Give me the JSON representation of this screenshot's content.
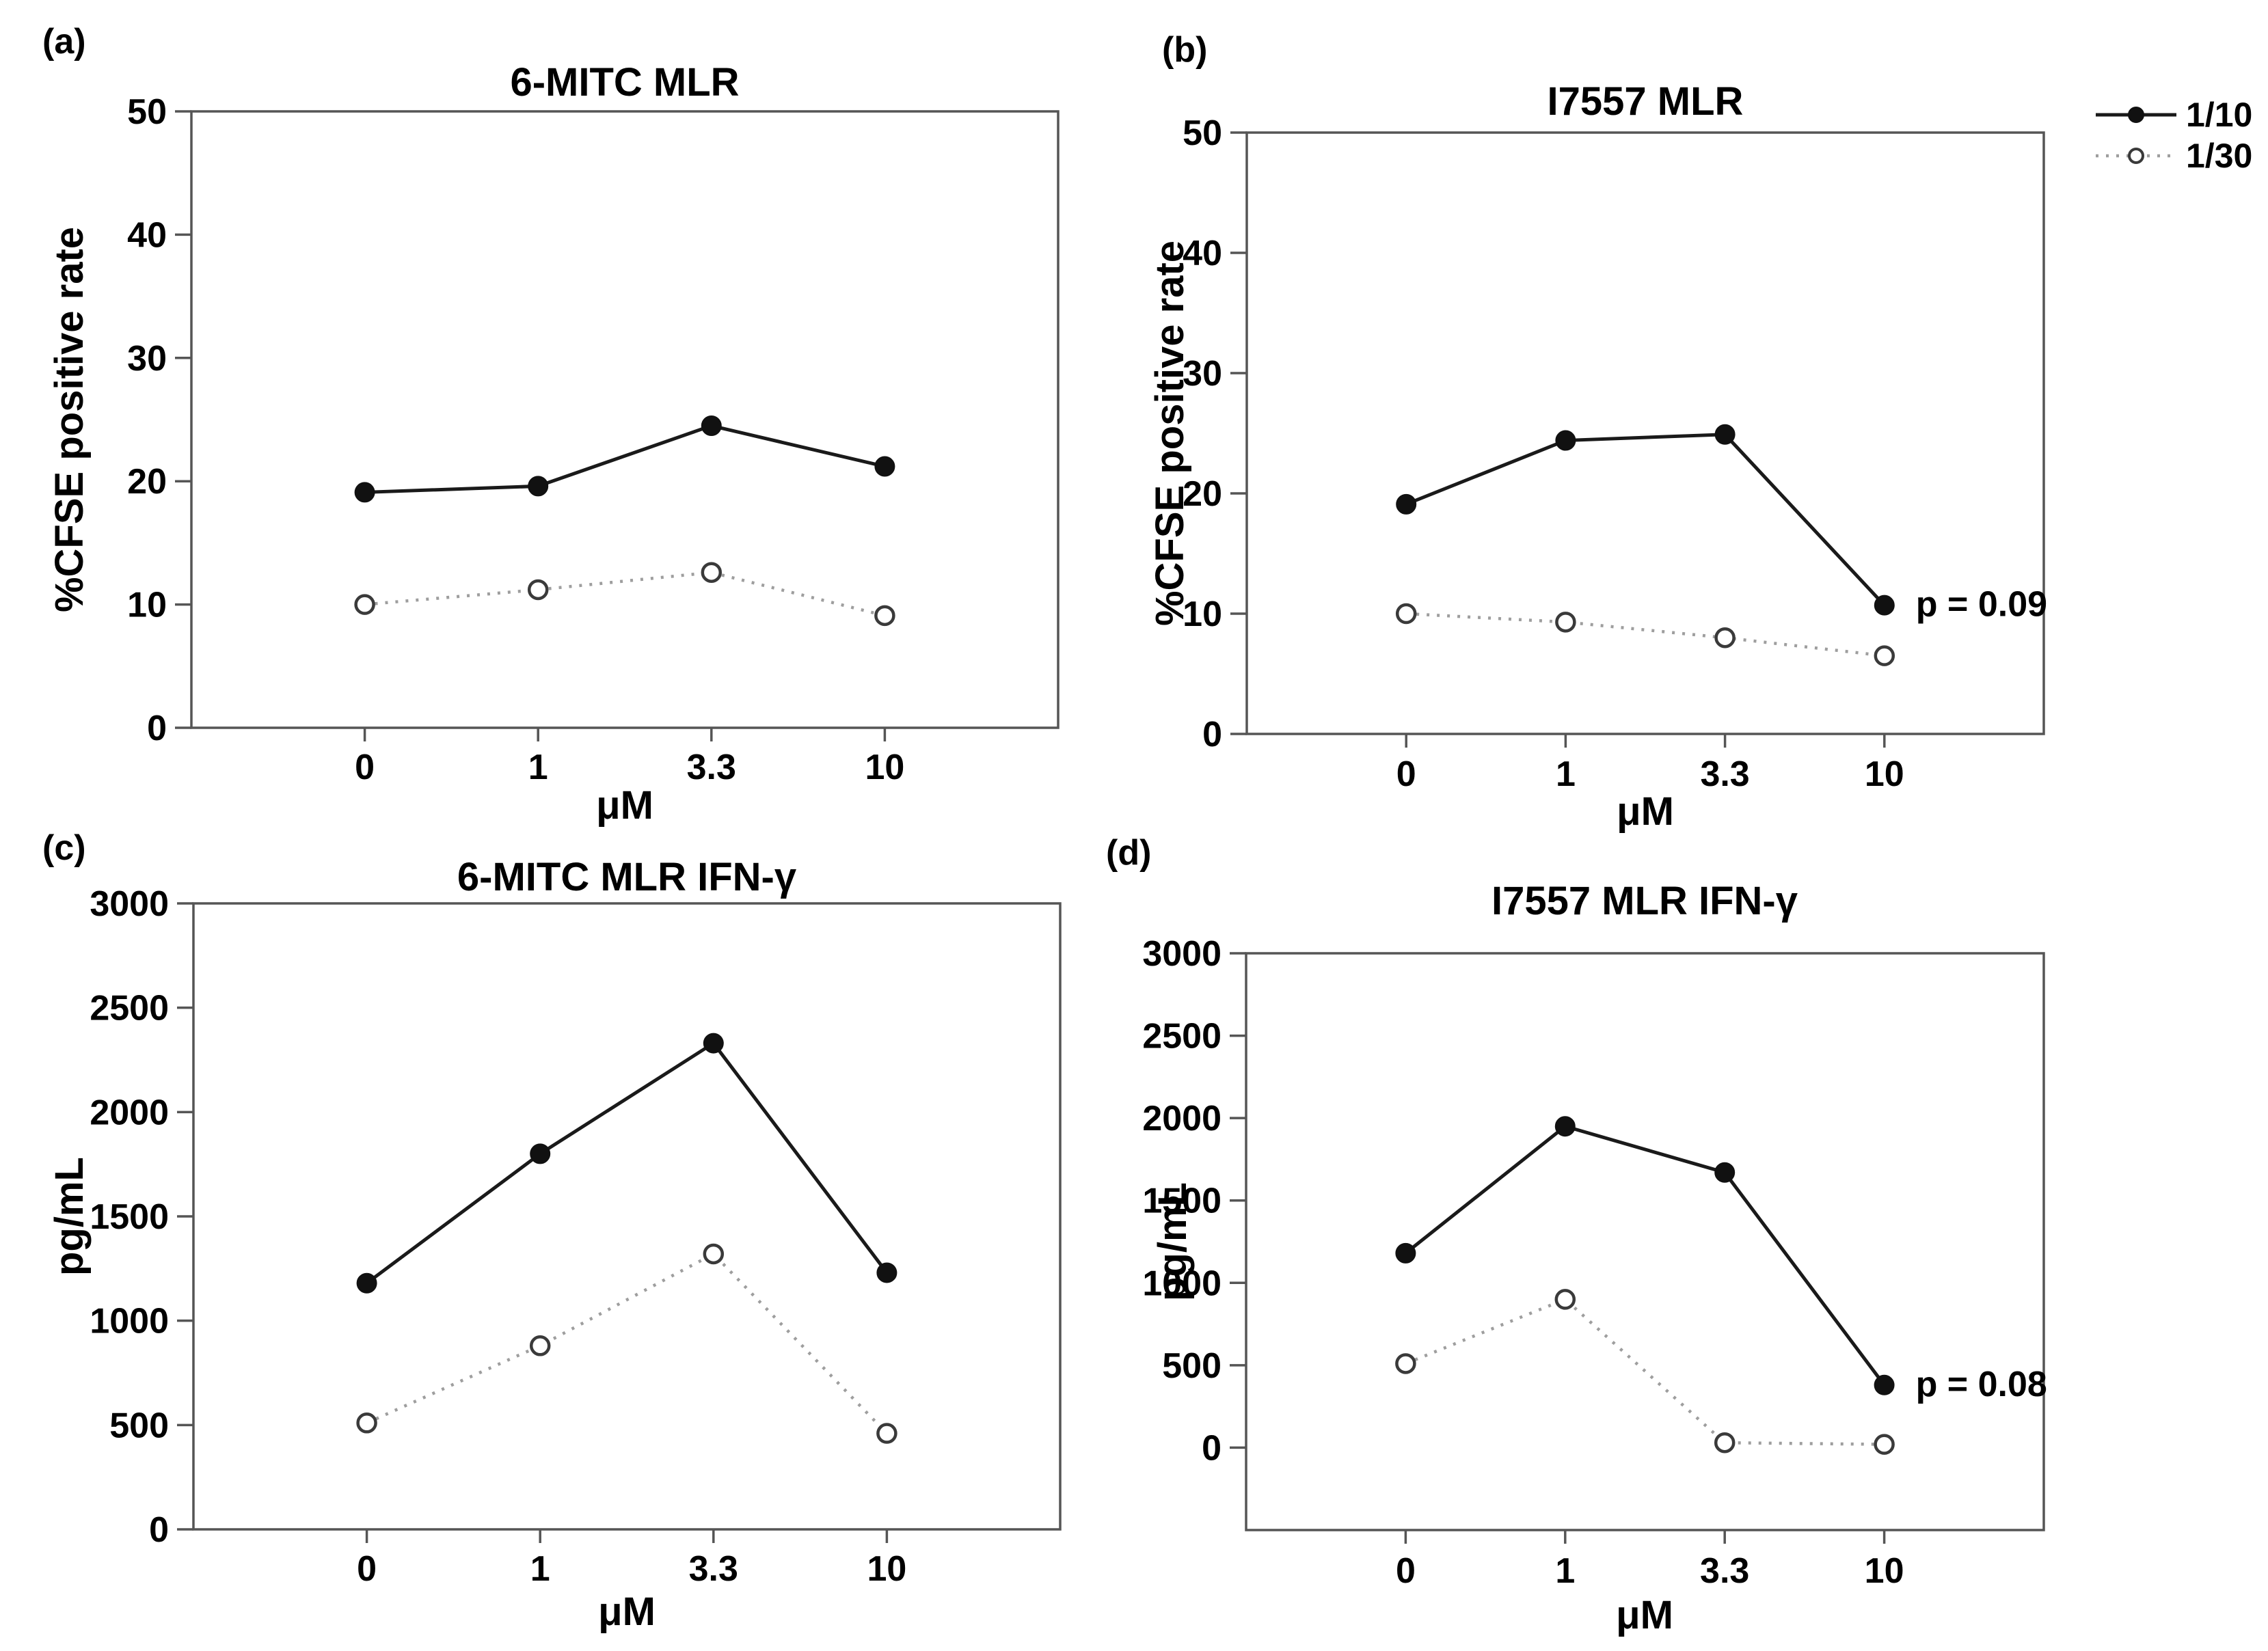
{
  "figure": {
    "legend": {
      "entries": [
        {
          "label": "1/10",
          "marker": "filled-circle",
          "line": "solid"
        },
        {
          "label": "1/30",
          "marker": "open-circle",
          "line": "dotted"
        }
      ]
    },
    "colors": {
      "solid_line": "#1a1a1a",
      "dotted_line": "#9e9e9e",
      "marker_fill": "#111111",
      "marker_open_fill": "#ffffff",
      "marker_open_stroke": "#3a3a3a",
      "axis_box": "#555555",
      "text": "#000000"
    }
  },
  "chart_data": [
    {
      "type": "line",
      "panel_label": "(a)",
      "title": "6-MITC MLR",
      "xlabel": "μM",
      "ylabel": "%CFSE positive rate",
      "categories": [
        "0",
        "1",
        "3.3",
        "10"
      ],
      "yticks": [
        0,
        10,
        20,
        30,
        40,
        50
      ],
      "ylim": [
        0,
        50
      ],
      "grid": false,
      "series": [
        {
          "name": "1/10",
          "values": [
            19.1,
            19.6,
            24.5,
            21.2
          ]
        },
        {
          "name": "1/30",
          "values": [
            10.0,
            11.2,
            12.6,
            9.1
          ]
        }
      ],
      "annotation": null
    },
    {
      "type": "line",
      "panel_label": "(b)",
      "title": "I7557 MLR",
      "xlabel": "μM",
      "ylabel": "%CFSE positive rate",
      "categories": [
        "0",
        "1",
        "3.3",
        "10"
      ],
      "yticks": [
        0,
        10,
        20,
        30,
        40,
        50
      ],
      "ylim": [
        0,
        50
      ],
      "grid": false,
      "series": [
        {
          "name": "1/10",
          "values": [
            19.1,
            24.4,
            24.9,
            10.7
          ]
        },
        {
          "name": "1/30",
          "values": [
            10.0,
            9.3,
            8.0,
            6.5
          ]
        }
      ],
      "annotation": {
        "text": "p = 0.09",
        "series": "1/10",
        "category_index": 3
      }
    },
    {
      "type": "line",
      "panel_label": "(c)",
      "title": "6-MITC MLR IFN-γ",
      "xlabel": "μM",
      "ylabel": "pg/mL",
      "categories": [
        "0",
        "1",
        "3.3",
        "10"
      ],
      "yticks": [
        0,
        500,
        1000,
        1500,
        2000,
        2500,
        3000
      ],
      "ylim": [
        0,
        3000
      ],
      "grid": false,
      "series": [
        {
          "name": "1/10",
          "values": [
            1180,
            1800,
            2330,
            1230
          ]
        },
        {
          "name": "1/30",
          "values": [
            510,
            880,
            1320,
            460
          ]
        }
      ],
      "annotation": null
    },
    {
      "type": "line",
      "panel_label": "(d)",
      "title": "I7557 MLR IFN-γ",
      "xlabel": "μM",
      "ylabel": "pg/mL",
      "categories": [
        "0",
        "1",
        "3.3",
        "10"
      ],
      "yticks": [
        0,
        500,
        1000,
        1500,
        2000,
        2500,
        3000
      ],
      "ylim": [
        -500,
        3000
      ],
      "grid": false,
      "series": [
        {
          "name": "1/10",
          "values": [
            1180,
            1950,
            1670,
            380
          ]
        },
        {
          "name": "1/30",
          "values": [
            510,
            900,
            30,
            20
          ]
        }
      ],
      "annotation": {
        "text": "p = 0.08",
        "series": "1/10",
        "category_index": 3
      }
    }
  ]
}
